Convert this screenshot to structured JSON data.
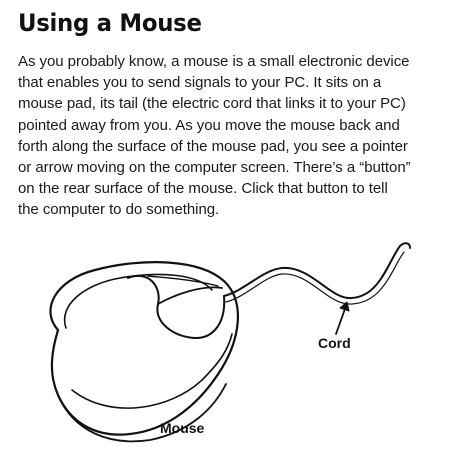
{
  "heading": "Using a Mouse",
  "paragraph_lines": [
    "As you probably know, a mouse is a small electronic device",
    "that enables you to send signals to your PC. It sits on a",
    "mouse pad, its tail (the electric cord that links it to your PC)",
    "pointed away from you. As you move the mouse back and",
    "forth along the surface of the mouse pad, you see a pointer",
    "or arrow moving on the computer screen. There’s a “button”",
    "on the rear surface of the mouse. Click that button to tell",
    "the computer to do something."
  ],
  "labels": {
    "cord": "Cord",
    "mouse": "Mouse"
  }
}
